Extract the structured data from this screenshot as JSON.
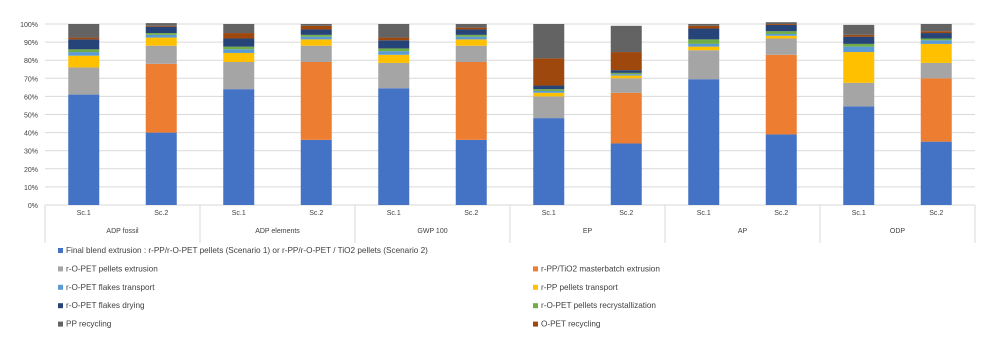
{
  "chart_data": {
    "type": "bar",
    "stacked": true,
    "percent_stacked": true,
    "title": "",
    "xlabel": "",
    "ylabel": "",
    "ylim": [
      0,
      100
    ],
    "y_ticks": [
      "0%",
      "10%",
      "20%",
      "30%",
      "40%",
      "50%",
      "60%",
      "70%",
      "80%",
      "90%",
      "100%"
    ],
    "grid": true,
    "legend_position": "bottom",
    "categories": [
      "Sc.1",
      "Sc.2",
      "Sc.1",
      "Sc.2",
      "Sc.1",
      "Sc.2",
      "Sc.1",
      "Sc.2",
      "Sc.1",
      "Sc.2",
      "Sc.1",
      "Sc.2"
    ],
    "groups": [
      "ADP fossil",
      "ADP elements",
      "GWP 100",
      "EP",
      "AP",
      "ODP"
    ],
    "series": [
      {
        "name": "Final blend extrusion : r-PP/r-O-PET pellets (Scenario 1) or r-PP/r-O-PET / TiO2 pellets (Scenario 2)",
        "color": "#4472c4",
        "values": [
          61,
          40,
          64,
          36,
          64.5,
          36,
          48,
          34,
          69.5,
          39,
          54.5,
          35
        ]
      },
      {
        "name": "r-PP/TiO2 masterbatch extrusion",
        "color": "#ed7d31",
        "values": [
          0,
          38,
          0,
          43,
          0,
          43,
          0,
          28,
          0,
          44,
          0,
          35
        ]
      },
      {
        "name": "r-O-PET pellets extrusion",
        "color": "#a5a5a5",
        "values": [
          15,
          10,
          15,
          9,
          14,
          9,
          12,
          8,
          16,
          9,
          13,
          8.5
        ]
      },
      {
        "name": "r-PP pellets transport",
        "color": "#ffc000",
        "values": [
          6.5,
          4.5,
          5,
          3.5,
          4.5,
          3.5,
          2,
          1.5,
          2,
          1.5,
          17,
          10.5
        ]
      },
      {
        "name": "r-O-PET flakes transport",
        "color": "#5b9bd5",
        "values": [
          2,
          1.5,
          2,
          1.5,
          2,
          1.5,
          1,
          0.8,
          1.5,
          1,
          3,
          2
        ]
      },
      {
        "name": "r-O-PET pellets recrystallization",
        "color": "#70ad47",
        "values": [
          1.5,
          1,
          1.5,
          1,
          1.5,
          1,
          1,
          0.7,
          2.5,
          1.5,
          1.5,
          1
        ]
      },
      {
        "name": "r-O-PET flakes drying",
        "color": "#264478",
        "values": [
          5.5,
          3.5,
          4.5,
          3,
          4.5,
          3,
          2,
          1.5,
          6,
          3.5,
          4,
          3
        ]
      },
      {
        "name": "O-PET recycling",
        "color": "#9e480e",
        "values": [
          1,
          0.5,
          3,
          2,
          1.5,
          1,
          15,
          10,
          1.5,
          0.5,
          1,
          1
        ]
      },
      {
        "name": "PP recycling",
        "color": "#636363",
        "values": [
          7.5,
          1.5,
          5,
          1,
          7.5,
          2,
          19,
          14.5,
          1,
          1,
          5.5,
          4
        ]
      }
    ]
  }
}
